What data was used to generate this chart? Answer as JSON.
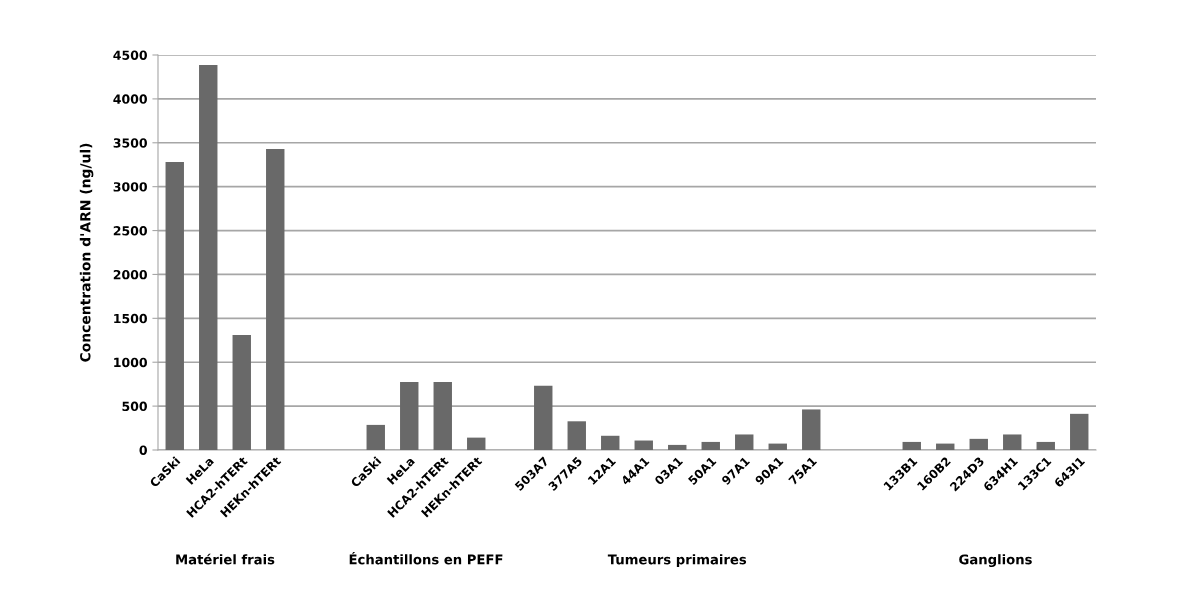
{
  "chart_data": {
    "type": "bar",
    "ylabel": "Concentration d'ARN (ng/ul)",
    "categories": [
      "CaSki",
      "HeLa",
      "HCA2-hTERt",
      "HEKn-hTERt",
      null,
      null,
      "CaSki",
      "HeLa",
      "HCA2-hTERt",
      "HEKn-hTERt",
      null,
      "503A7",
      "377A5",
      "12A1",
      "44A1",
      "03A1",
      "50A1",
      "97A1",
      "90A1",
      "75A1",
      null,
      null,
      "133B1",
      "160B2",
      "224D3",
      "634H1",
      "133C1",
      "643I1"
    ],
    "values": [
      3280,
      4385,
      1310,
      3430,
      null,
      null,
      286,
      775,
      775,
      141,
      null,
      731,
      327,
      162,
      108,
      58,
      92,
      177,
      73,
      462,
      null,
      null,
      92,
      73,
      127,
      177,
      92,
      412
    ],
    "color": "#696969",
    "ylim": [
      0,
      4500
    ],
    "yticks": [
      0,
      500,
      1000,
      1500,
      2000,
      2500,
      3000,
      3500,
      4000,
      4500
    ],
    "grid": "y",
    "annotations": [
      "Matériel frais",
      "Échantillons en PEFF",
      "Tumeurs primaires",
      "Ganglions"
    ]
  }
}
